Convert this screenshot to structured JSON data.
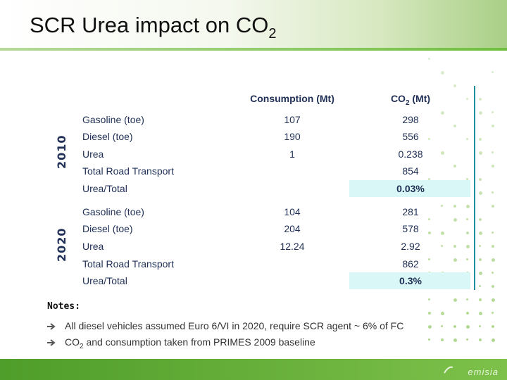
{
  "slide": {
    "title_main": "SCR Urea impact on CO",
    "title_sub": "2"
  },
  "table": {
    "headers": {
      "consumption": "Consumption (Mt)",
      "co2_main": "CO",
      "co2_sub": "2",
      "co2_unit": " (Mt)"
    },
    "groups": [
      {
        "year": "2010",
        "rows": [
          {
            "label": "Gasoline (toe)",
            "consumption": "107",
            "co2": "298"
          },
          {
            "label": "Diesel (toe)",
            "consumption": "190",
            "co2": "556"
          },
          {
            "label": "Urea",
            "consumption": "1",
            "co2": "0.238"
          },
          {
            "label": "Total Road Transport",
            "consumption": "",
            "co2": "854"
          },
          {
            "label": "Urea/Total",
            "consumption": "",
            "co2": "0.03%"
          }
        ]
      },
      {
        "year": "2020",
        "rows": [
          {
            "label": "Gasoline (toe)",
            "consumption": "104",
            "co2": "281"
          },
          {
            "label": "Diesel (toe)",
            "consumption": "204",
            "co2": "578"
          },
          {
            "label": "Urea",
            "consumption": "12.24",
            "co2": "2.92"
          },
          {
            "label": "Total Road Transport",
            "consumption": "",
            "co2": "862"
          },
          {
            "label": "Urea/Total",
            "consumption": "",
            "co2": "0.3%"
          }
        ]
      }
    ]
  },
  "notes": {
    "title": "Notes:",
    "items": [
      {
        "main": "All diesel vehicles assumed Euro 6/VI in 2020, require SCR agent ~ 6% of FC"
      },
      {
        "pre": "CO",
        "sub": "2",
        "post": " and consumption taken from PRIMES 2009 baseline"
      }
    ]
  },
  "footer": {
    "logo": "emisia"
  },
  "colors": {
    "accent_green": "#6fbf3f",
    "highlight": "#d9f7f7",
    "text_navy": "#1f2f55",
    "rule_teal": "#1d8e9b"
  }
}
